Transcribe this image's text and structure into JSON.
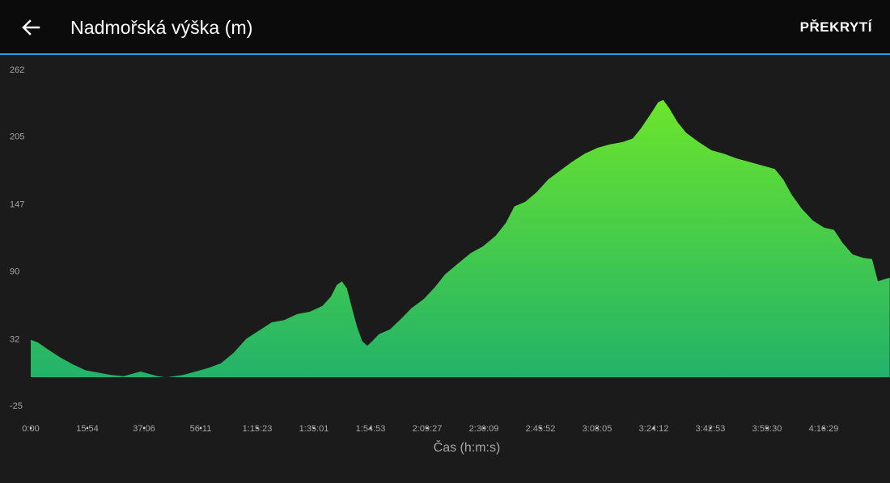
{
  "header": {
    "back_icon": "arrow-left-icon",
    "title": "Nadmořská výška (m)",
    "action_label": "PŘEKRYTÍ"
  },
  "colors": {
    "background": "#1b1b1b",
    "header_bg": "#0b0b0b",
    "accent_line": "#1ea1e6",
    "fill_top": "#6de62a",
    "fill_bottom": "#22b26a",
    "axis_text": "#a6a6a6"
  },
  "chart_data": {
    "type": "area",
    "xlabel": "Čas (h:m:s)",
    "ylabel": "",
    "ylim": [
      -25,
      262
    ],
    "yticks": [
      262,
      205,
      147,
      90,
      32,
      -25
    ],
    "xticks": [
      "0:00",
      "15:54",
      "37:06",
      "56:11",
      "1:15:23",
      "1:35:01",
      "1:54:53",
      "2:09:27",
      "2:30:09",
      "2:45:52",
      "3:08:05",
      "3:24:12",
      "3:42:53",
      "3:59:30",
      "4:16:29"
    ],
    "grid": false,
    "x_unit": "fraction of elapsed time axis (0 = 0:00)",
    "points": [
      [
        0.0,
        31
      ],
      [
        0.008,
        29
      ],
      [
        0.02,
        23
      ],
      [
        0.035,
        16
      ],
      [
        0.05,
        10
      ],
      [
        0.065,
        5
      ],
      [
        0.08,
        3
      ],
      [
        0.095,
        1
      ],
      [
        0.11,
        0
      ],
      [
        0.125,
        3
      ],
      [
        0.13,
        4
      ],
      [
        0.14,
        2
      ],
      [
        0.15,
        0
      ],
      [
        0.16,
        -1
      ],
      [
        0.17,
        0
      ],
      [
        0.18,
        1
      ],
      [
        0.195,
        4
      ],
      [
        0.21,
        7
      ],
      [
        0.225,
        11
      ],
      [
        0.24,
        20
      ],
      [
        0.255,
        32
      ],
      [
        0.27,
        39
      ],
      [
        0.285,
        46
      ],
      [
        0.3,
        48
      ],
      [
        0.315,
        53
      ],
      [
        0.33,
        55
      ],
      [
        0.345,
        60
      ],
      [
        0.355,
        68
      ],
      [
        0.362,
        78
      ],
      [
        0.368,
        81
      ],
      [
        0.374,
        75
      ],
      [
        0.38,
        58
      ],
      [
        0.386,
        42
      ],
      [
        0.392,
        30
      ],
      [
        0.398,
        26
      ],
      [
        0.404,
        30
      ],
      [
        0.412,
        36
      ],
      [
        0.425,
        40
      ],
      [
        0.438,
        49
      ],
      [
        0.45,
        58
      ],
      [
        0.465,
        66
      ],
      [
        0.478,
        76
      ],
      [
        0.49,
        87
      ],
      [
        0.505,
        96
      ],
      [
        0.52,
        105
      ],
      [
        0.535,
        111
      ],
      [
        0.55,
        120
      ],
      [
        0.562,
        131
      ],
      [
        0.572,
        145
      ],
      [
        0.585,
        149
      ],
      [
        0.598,
        157
      ],
      [
        0.612,
        168
      ],
      [
        0.625,
        175
      ],
      [
        0.64,
        183
      ],
      [
        0.655,
        190
      ],
      [
        0.67,
        195
      ],
      [
        0.685,
        198
      ],
      [
        0.7,
        200
      ],
      [
        0.712,
        203
      ],
      [
        0.722,
        212
      ],
      [
        0.735,
        226
      ],
      [
        0.742,
        234
      ],
      [
        0.748,
        236
      ],
      [
        0.755,
        229
      ],
      [
        0.765,
        217
      ],
      [
        0.775,
        208
      ],
      [
        0.79,
        200
      ],
      [
        0.805,
        193
      ],
      [
        0.82,
        190
      ],
      [
        0.835,
        186
      ],
      [
        0.85,
        183
      ],
      [
        0.865,
        180
      ],
      [
        0.88,
        177
      ],
      [
        0.89,
        168
      ],
      [
        0.9,
        155
      ],
      [
        0.912,
        143
      ],
      [
        0.925,
        133
      ],
      [
        0.938,
        127
      ],
      [
        0.95,
        125
      ],
      [
        0.96,
        114
      ],
      [
        0.972,
        104
      ],
      [
        0.985,
        101
      ],
      [
        0.995,
        100
      ],
      [
        1.002,
        81
      ],
      [
        1.01,
        83
      ],
      [
        1.016,
        84
      ]
    ]
  }
}
